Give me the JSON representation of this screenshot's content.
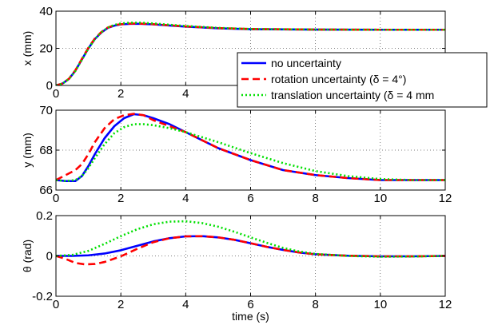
{
  "chart_data": [
    {
      "type": "line",
      "ylabel": "x (mm)",
      "xlabel": "",
      "xlim": [
        0,
        12
      ],
      "ylim": [
        0,
        40
      ],
      "xticks": [
        0,
        2,
        4,
        6,
        8,
        10,
        12
      ],
      "yticks": [
        0,
        20,
        40
      ],
      "grid": true,
      "legend": "top-right",
      "series": [
        {
          "name": "no uncertainty",
          "color": "#0000ff",
          "dash": "solid",
          "x": [
            0,
            0.2,
            0.4,
            0.6,
            0.8,
            1.0,
            1.2,
            1.4,
            1.6,
            1.8,
            2.0,
            2.3,
            2.6,
            3.0,
            3.5,
            4.0,
            5.0,
            6.0,
            8.0,
            10.0,
            12.0
          ],
          "y": [
            0,
            1,
            3.5,
            8,
            14,
            20,
            25,
            28.5,
            31,
            32.2,
            32.9,
            33.2,
            33.2,
            32.9,
            32.3,
            31.7,
            30.8,
            30.3,
            30.1,
            30.0,
            30.0
          ]
        },
        {
          "name": "rotation uncertainty (δ = 4°)",
          "color": "#ff0000",
          "dash": "dashed",
          "x": [
            0,
            0.2,
            0.4,
            0.6,
            0.8,
            1.0,
            1.2,
            1.4,
            1.6,
            1.8,
            2.0,
            2.3,
            2.6,
            3.0,
            3.5,
            4.0,
            5.0,
            6.0,
            8.0,
            10.0,
            12.0
          ],
          "y": [
            0,
            1,
            3.6,
            8.2,
            14.3,
            20.3,
            25.3,
            28.8,
            31.2,
            32.4,
            33.0,
            33.3,
            33.3,
            33.0,
            32.4,
            31.8,
            30.9,
            30.4,
            30.1,
            30.0,
            30.0
          ]
        },
        {
          "name": "translation uncertainty (δ = 4 mm",
          "color": "#00e000",
          "dash": "dotted",
          "x": [
            0,
            0.2,
            0.4,
            0.6,
            0.8,
            1.0,
            1.2,
            1.4,
            1.6,
            1.8,
            2.0,
            2.3,
            2.6,
            3.0,
            3.5,
            4.0,
            5.0,
            6.0,
            8.0,
            10.0,
            12.0
          ],
          "y": [
            0,
            1,
            3.4,
            7.8,
            13.8,
            19.8,
            25,
            28.6,
            31.2,
            32.6,
            33.4,
            33.8,
            33.8,
            33.4,
            32.7,
            32.0,
            31.0,
            30.4,
            30.1,
            30.0,
            30.0
          ]
        }
      ]
    },
    {
      "type": "line",
      "ylabel": "y (mm)",
      "xlabel": "",
      "xlim": [
        0,
        12
      ],
      "ylim": [
        66,
        70
      ],
      "xticks": [
        0,
        2,
        4,
        6,
        8,
        10,
        12
      ],
      "yticks": [
        66,
        68,
        70
      ],
      "grid": true,
      "series": [
        {
          "name": "no uncertainty",
          "color": "#0000ff",
          "dash": "solid",
          "x": [
            0,
            0.3,
            0.6,
            0.8,
            1.0,
            1.2,
            1.5,
            1.8,
            2.1,
            2.4,
            2.7,
            3.0,
            3.5,
            4.0,
            5.0,
            6.0,
            7.0,
            8.0,
            9.0,
            10.0,
            11.0,
            12.0
          ],
          "y": [
            66.5,
            66.45,
            66.45,
            66.7,
            67.2,
            67.8,
            68.6,
            69.2,
            69.6,
            69.8,
            69.75,
            69.6,
            69.3,
            68.9,
            68.1,
            67.5,
            67.0,
            66.75,
            66.6,
            66.5,
            66.5,
            66.5
          ]
        },
        {
          "name": "rotation uncertainty (δ = 4°)",
          "color": "#ff0000",
          "dash": "dashed",
          "x": [
            0,
            0.3,
            0.6,
            0.8,
            1.0,
            1.2,
            1.5,
            1.8,
            2.1,
            2.4,
            2.7,
            3.0,
            3.5,
            4.0,
            5.0,
            6.0,
            7.0,
            8.0,
            9.0,
            10.0,
            11.0,
            12.0
          ],
          "y": [
            66.5,
            66.75,
            67.0,
            67.3,
            67.8,
            68.4,
            69.1,
            69.55,
            69.75,
            69.82,
            69.75,
            69.5,
            69.2,
            68.9,
            68.1,
            67.5,
            67.0,
            66.75,
            66.6,
            66.5,
            66.5,
            66.5
          ]
        },
        {
          "name": "translation uncertainty (δ = 4 mm",
          "color": "#00e000",
          "dash": "dotted",
          "x": [
            0,
            0.3,
            0.6,
            0.8,
            1.0,
            1.2,
            1.5,
            1.8,
            2.1,
            2.4,
            2.7,
            3.0,
            3.5,
            4.0,
            5.0,
            6.0,
            7.0,
            8.0,
            9.0,
            10.0,
            11.0,
            12.0
          ],
          "y": [
            66.5,
            66.45,
            66.5,
            66.7,
            67.1,
            67.6,
            68.3,
            68.85,
            69.15,
            69.3,
            69.3,
            69.25,
            69.1,
            68.9,
            68.4,
            67.85,
            67.35,
            66.95,
            66.7,
            66.55,
            66.5,
            66.5
          ]
        }
      ]
    },
    {
      "type": "line",
      "ylabel": "θ (rad)",
      "xlabel": "time (s)",
      "xlim": [
        0,
        12
      ],
      "ylim": [
        -0.2,
        0.2
      ],
      "xticks": [
        0,
        2,
        4,
        6,
        8,
        10,
        12
      ],
      "yticks": [
        -0.2,
        0,
        0.2
      ],
      "ytick_labels": [
        "-0.2",
        "0",
        "0.2"
      ],
      "grid": true,
      "series": [
        {
          "name": "no uncertainty",
          "color": "#0000ff",
          "dash": "solid",
          "x": [
            0,
            0.5,
            1.0,
            1.5,
            2.0,
            2.5,
            3.0,
            3.5,
            4.0,
            4.5,
            5.0,
            5.5,
            6.0,
            6.5,
            7.0,
            7.5,
            8.0,
            9.0,
            10.0,
            11.0,
            12.0
          ],
          "y": [
            0,
            0,
            0.003,
            0.012,
            0.028,
            0.05,
            0.072,
            0.088,
            0.097,
            0.098,
            0.092,
            0.08,
            0.063,
            0.045,
            0.03,
            0.017,
            0.008,
            0.001,
            -0.002,
            -0.002,
            0
          ]
        },
        {
          "name": "rotation uncertainty (δ = 4°)",
          "color": "#ff0000",
          "dash": "dashed",
          "x": [
            0,
            0.3,
            0.6,
            0.9,
            1.2,
            1.5,
            2.0,
            2.5,
            3.0,
            3.5,
            4.0,
            4.5,
            5.0,
            5.5,
            6.0,
            6.5,
            7.0,
            7.5,
            8.0,
            9.0,
            10.0,
            11.0,
            12.0
          ],
          "y": [
            0,
            -0.015,
            -0.035,
            -0.042,
            -0.04,
            -0.03,
            -0.002,
            0.035,
            0.068,
            0.088,
            0.097,
            0.098,
            0.092,
            0.08,
            0.063,
            0.045,
            0.03,
            0.017,
            0.008,
            0.001,
            -0.002,
            -0.002,
            0
          ]
        },
        {
          "name": "translation uncertainty (δ = 4 mm",
          "color": "#00e000",
          "dash": "dotted",
          "x": [
            0,
            0.5,
            1.0,
            1.5,
            2.0,
            2.5,
            3.0,
            3.5,
            4.0,
            4.5,
            5.0,
            5.5,
            6.0,
            6.5,
            7.0,
            7.5,
            8.0,
            9.0,
            10.0,
            11.0,
            12.0
          ],
          "y": [
            0,
            0.005,
            0.025,
            0.06,
            0.098,
            0.132,
            0.157,
            0.17,
            0.172,
            0.163,
            0.145,
            0.12,
            0.092,
            0.065,
            0.04,
            0.022,
            0.01,
            0,
            -0.004,
            -0.003,
            0
          ]
        }
      ]
    }
  ],
  "legend": {
    "entries": [
      {
        "label": "no uncertainty",
        "color": "#0000ff",
        "dash": "solid"
      },
      {
        "label": "rotation uncertainty (δ = 4°)",
        "color": "#ff0000",
        "dash": "dashed"
      },
      {
        "label": "translation uncertainty (δ = 4 mm",
        "color": "#00e000",
        "dash": "dotted"
      }
    ]
  }
}
